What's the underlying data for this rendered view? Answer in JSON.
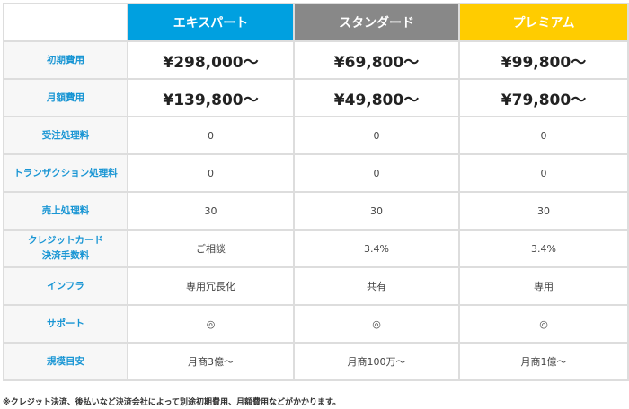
{
  "columns": [
    {
      "name": "エキスパート",
      "color": "#00a0e0"
    },
    {
      "name": "スタンダード",
      "color": "#888888"
    },
    {
      "name": "プレミアム",
      "color": "#ffcc00"
    }
  ],
  "rows": [
    {
      "label": [
        "初期費用"
      ],
      "values": [
        "¥298,000〜",
        "¥69,800〜",
        "¥99,800〜"
      ],
      "style": "price"
    },
    {
      "label": [
        "月額費用"
      ],
      "values": [
        "¥139,800〜",
        "¥49,800〜",
        "¥79,800〜"
      ],
      "style": "price"
    },
    {
      "label": [
        "受注処理料"
      ],
      "values": [
        "0",
        "0",
        "0"
      ],
      "style": "normal"
    },
    {
      "label": [
        "トランザクション処理料"
      ],
      "values": [
        "0",
        "0",
        "0"
      ],
      "style": "normal"
    },
    {
      "label": [
        "売上処理料"
      ],
      "values": [
        "30",
        "30",
        "30"
      ],
      "style": "normal"
    },
    {
      "label": [
        "クレジットカード",
        "決済手数料"
      ],
      "values": [
        "ご相談",
        "3.4%",
        "3.4%"
      ],
      "style": "normal"
    },
    {
      "label": [
        "インフラ"
      ],
      "values": [
        "専用冗長化",
        "共有",
        "専用"
      ],
      "style": "normal"
    },
    {
      "label": [
        "サポート"
      ],
      "values": [
        "◎",
        "◎",
        "◎"
      ],
      "style": "normal"
    },
    {
      "label": [
        "規模目安"
      ],
      "values": [
        "月商3億〜",
        "月商100万〜",
        "月商1億〜"
      ],
      "style": "normal"
    }
  ],
  "note": "※クレジット決済、後払いなど決済会社によって別途初期費用、月額費用などがかかります。",
  "colors": {
    "label_text": "#1a96d4",
    "label_bg": "#f7f7f7",
    "border": "#dddddd"
  }
}
